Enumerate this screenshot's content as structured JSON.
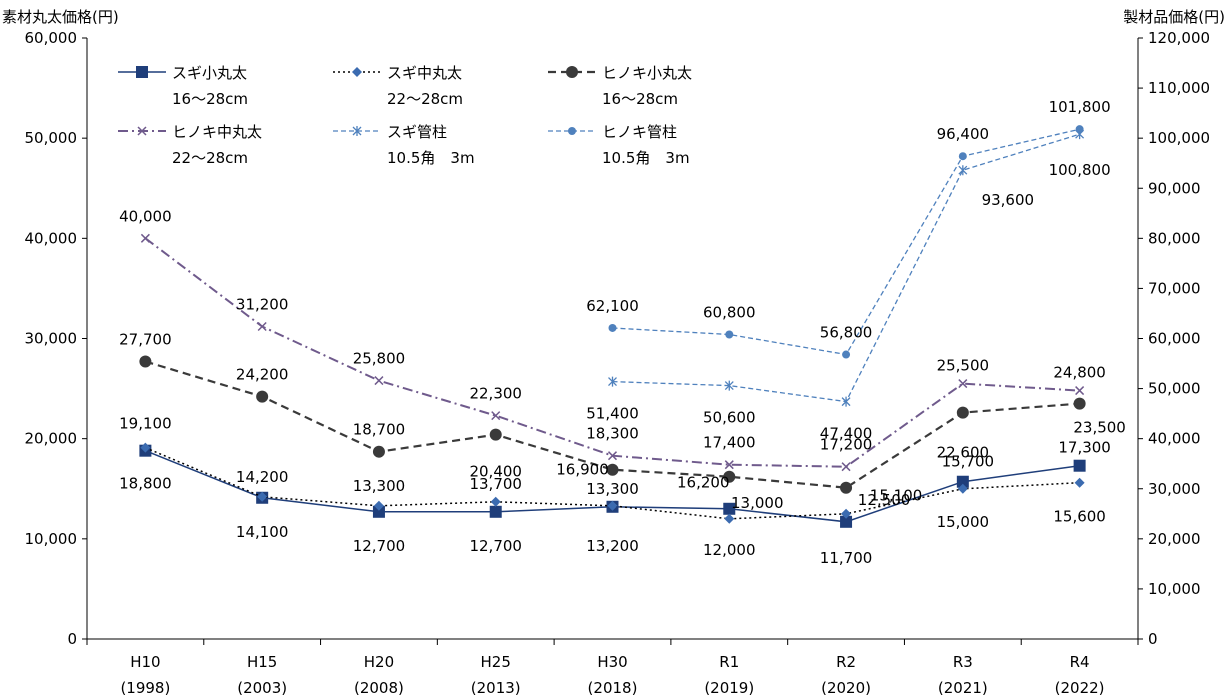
{
  "chart_data": {
    "type": "line",
    "categories": [
      "H10",
      "H15",
      "H20",
      "H25",
      "H30",
      "R1",
      "R2",
      "R3",
      "R4"
    ],
    "categories_sub": [
      "(1998)",
      "(2003)",
      "(2008)",
      "(2013)",
      "(2018)",
      "(2019)",
      "(2020)",
      "(2021)",
      "(2022)"
    ],
    "ylabel_left": "素材丸太価格(円)",
    "ylabel_right": "製材品価格(円)",
    "ylim_left": [
      0,
      60000
    ],
    "ylim_right": [
      0,
      120000
    ],
    "yticks_left": [
      "0",
      "10,000",
      "20,000",
      "30,000",
      "40,000",
      "50,000",
      "60,000"
    ],
    "yticks_right": [
      "0",
      "10,000",
      "20,000",
      "30,000",
      "40,000",
      "50,000",
      "60,000",
      "70,000",
      "80,000",
      "90,000",
      "100,000",
      "110,000",
      "120,000"
    ],
    "grid": false,
    "legend_position": "top-left",
    "series": [
      {
        "name": "スギ小丸太",
        "name_sub": "16～28cm",
        "axis": "left",
        "color": "#1f3e7a",
        "values": [
          18800,
          14100,
          12700,
          12700,
          13200,
          13000,
          11700,
          15700,
          17300
        ],
        "labels": [
          "18,800",
          "14,100",
          "12,700",
          "12,700",
          "13,200",
          "13,000",
          "11,700",
          "15,700",
          "17,300"
        ]
      },
      {
        "name": "スギ中丸太",
        "name_sub": "22～28cm",
        "axis": "left",
        "color": "#000000",
        "values": [
          19100,
          14200,
          13300,
          13700,
          13300,
          12000,
          12500,
          15000,
          15600
        ],
        "labels": [
          "19,100",
          "14,200",
          "13,300",
          "13,700",
          "13,300",
          "12,000",
          "12,500",
          "15,000",
          "15,600"
        ]
      },
      {
        "name": "ヒノキ小丸太",
        "name_sub": "16～28cm",
        "axis": "left",
        "color": "#3a3a3a",
        "values": [
          27700,
          24200,
          18700,
          20400,
          16900,
          16200,
          15100,
          22600,
          23500
        ],
        "labels": [
          "27,700",
          "24,200",
          "18,700",
          "20,400",
          "16,900",
          "16,200",
          "15,100",
          "22,600",
          "23,500"
        ]
      },
      {
        "name": "ヒノキ中丸太",
        "name_sub": "22～28cm",
        "axis": "left",
        "color": "#6f5a8c",
        "values": [
          40000,
          31200,
          25800,
          22300,
          18300,
          17400,
          17200,
          25500,
          24800
        ],
        "labels": [
          "40,000",
          "31,200",
          "25,800",
          "22,300",
          "18,300",
          "17,400",
          "17,200",
          "25,500",
          "24,800"
        ]
      },
      {
        "name": "スギ管柱",
        "name_sub": "10.5角　3m",
        "axis": "right",
        "color": "#4f81bd",
        "values": [
          null,
          null,
          null,
          null,
          51400,
          50600,
          47400,
          93600,
          100800
        ],
        "labels": [
          "",
          "",
          "",
          "",
          "51,400",
          "50,600",
          "47,400",
          "93,600",
          "100,800"
        ]
      },
      {
        "name": "ヒノキ管柱",
        "name_sub": "10.5角　3m",
        "axis": "right",
        "color": "#4f81bd",
        "values": [
          null,
          null,
          null,
          null,
          62100,
          60800,
          56800,
          96400,
          101800
        ],
        "labels": [
          "",
          "",
          "",
          "",
          "62,100",
          "60,800",
          "56,800",
          "96,400",
          "101,800"
        ]
      }
    ]
  }
}
